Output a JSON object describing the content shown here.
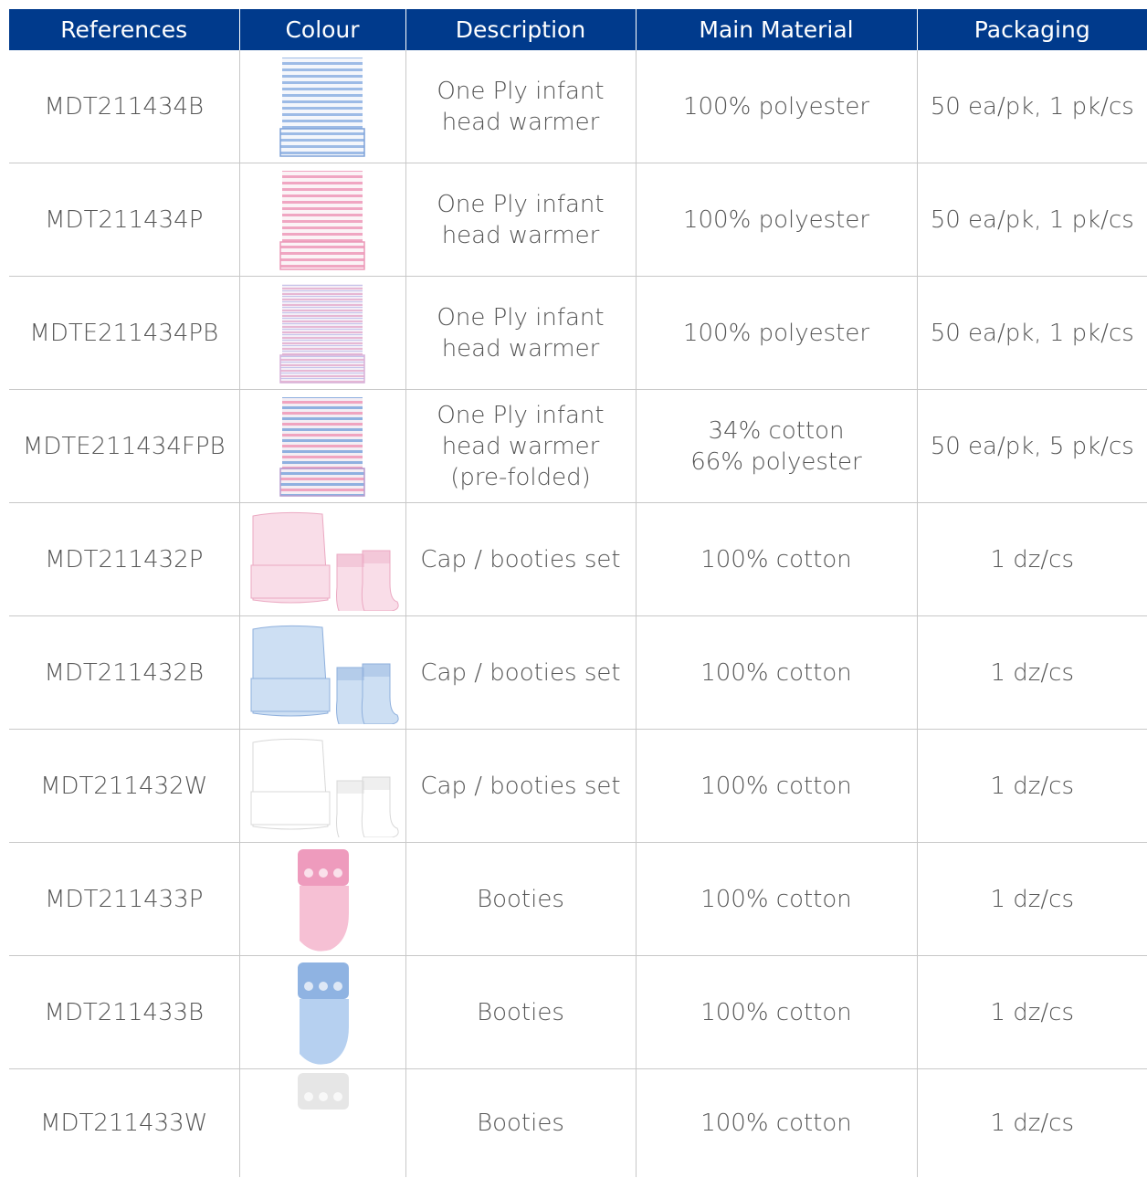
{
  "header": {
    "columns": [
      "References",
      "Colour",
      "Description",
      "Main Material",
      "Packaging"
    ]
  },
  "table": {
    "rows": [
      {
        "reference": "MDT211434B",
        "description": [
          "One Ply infant",
          "head warmer"
        ],
        "material": [
          "100% polyester"
        ],
        "packaging": "50 ea/pk, 1 pk/cs"
      },
      {
        "reference": "MDT211434P",
        "description": [
          "One Ply infant",
          "head warmer"
        ],
        "material": [
          "100% polyester"
        ],
        "packaging": "50 ea/pk, 1 pk/cs"
      },
      {
        "reference": "MDTE211434PB",
        "description": [
          "One Ply infant",
          "head warmer"
        ],
        "material": [
          "100% polyester"
        ],
        "packaging": "50 ea/pk, 1 pk/cs"
      },
      {
        "reference": "MDTE211434FPB",
        "description": [
          "One Ply infant",
          "head warmer",
          "(pre-folded)"
        ],
        "material": [
          "34% cotton",
          "66% polyester"
        ],
        "packaging": "50 ea/pk, 5 pk/cs"
      },
      {
        "reference": "MDT211432P",
        "description": [
          "Cap / booties set"
        ],
        "material": [
          "100% cotton"
        ],
        "packaging": "1 dz/cs"
      },
      {
        "reference": "MDT211432B",
        "description": [
          "Cap / booties set"
        ],
        "material": [
          "100% cotton"
        ],
        "packaging": "1 dz/cs"
      },
      {
        "reference": "MDT211432W",
        "description": [
          "Cap / booties set"
        ],
        "material": [
          "100% cotton"
        ],
        "packaging": "1 dz/cs"
      },
      {
        "reference": "MDT211433P",
        "description": [
          "Booties"
        ],
        "material": [
          "100% cotton"
        ],
        "packaging": "1 dz/cs"
      },
      {
        "reference": "MDT211433B",
        "description": [
          "Booties"
        ],
        "material": [
          "100% cotton"
        ],
        "packaging": "1 dz/cs"
      },
      {
        "reference": "MDT211433W",
        "description": [
          "Booties"
        ],
        "material": [
          "100% cotton"
        ],
        "packaging": "1 dz/cs"
      }
    ]
  }
}
